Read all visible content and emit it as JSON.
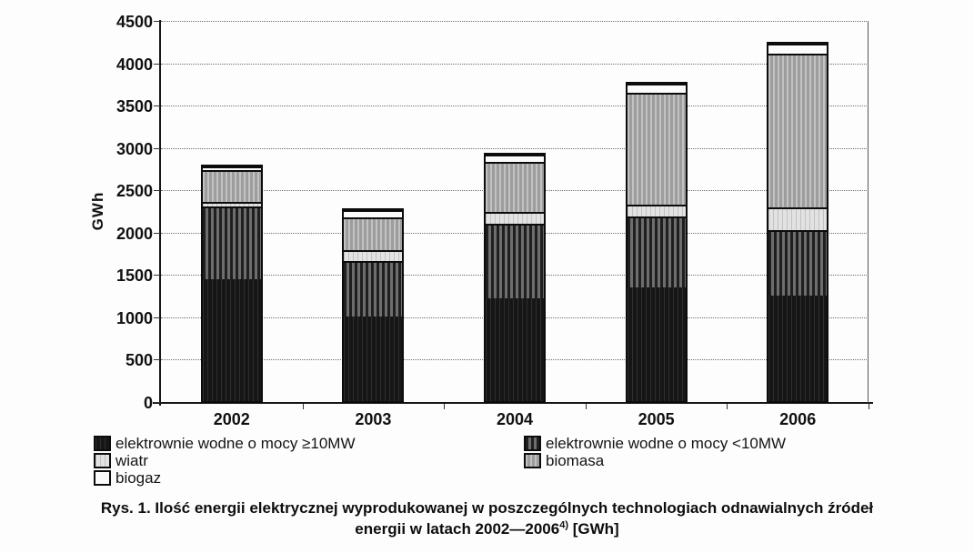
{
  "chart_data": {
    "type": "bar",
    "stacked": true,
    "title": "",
    "xlabel": "",
    "ylabel": "GWh",
    "ylim": [
      0,
      4500
    ],
    "y_ticks": [
      0,
      500,
      1000,
      1500,
      2000,
      2500,
      3000,
      3500,
      4000,
      4500
    ],
    "grid": true,
    "legend_position": "bottom",
    "categories": [
      "2002",
      "2003",
      "2004",
      "2005",
      "2006"
    ],
    "series": [
      {
        "name": "elektrownie wodne o mocy ≥10MW",
        "swatch": "hydro-large",
        "color": "#161616",
        "values": [
          1440,
          1000,
          1210,
          1340,
          1245
        ]
      },
      {
        "name": "elektrownie wodne o mocy <10MW",
        "swatch": "hydro-small",
        "color": "#4a4a4a",
        "values": [
          860,
          665,
          880,
          840,
          775
        ]
      },
      {
        "name": "wiatr",
        "swatch": "wind",
        "color": "#e2e2e2",
        "values": [
          55,
          125,
          140,
          140,
          265
        ]
      },
      {
        "name": "biomasa",
        "swatch": "biomass",
        "color": "#9d9d9d",
        "values": [
          375,
          385,
          590,
          1320,
          1815
        ]
      },
      {
        "name": "biogaz",
        "swatch": "biogas",
        "color": "#fbfbfb",
        "values": [
          45,
          85,
          90,
          105,
          120
        ]
      }
    ],
    "totals_estimated": [
      2775,
      2260,
      2910,
      3745,
      4220
    ]
  },
  "caption": {
    "line1": "Rys. 1. Ilość energii elektrycznej wyprodukowanej w poszczególnych technologiach odnawialnych źródeł",
    "line2_prefix": "energii w latach 2002—2006",
    "footnote_marker": "4)",
    "line2_suffix": " [GWh]"
  }
}
